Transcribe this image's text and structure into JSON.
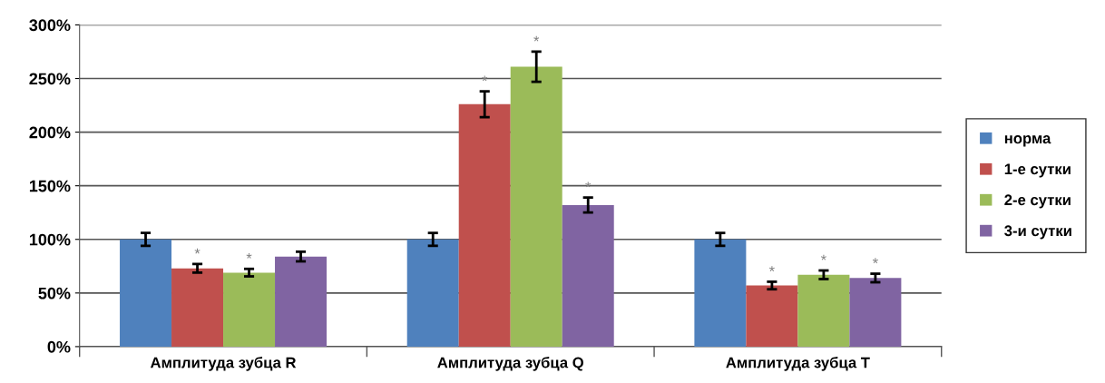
{
  "chart_data": {
    "type": "bar",
    "categories": [
      "Амплитуда зубца R",
      "Амплитуда зубца Q",
      "Амплитуда зубца T"
    ],
    "series": [
      {
        "name": "норма",
        "color": "#4f81bd",
        "values": [
          100,
          100,
          100
        ],
        "errors": [
          6,
          6,
          6
        ],
        "value_labels": [
          null,
          null,
          null
        ]
      },
      {
        "name": "1-е сутки",
        "color": "#c0504d",
        "values": [
          73,
          226,
          57
        ],
        "errors": [
          4,
          12,
          3.5
        ],
        "value_labels": [
          "*",
          "*",
          "*"
        ]
      },
      {
        "name": "2-е сутки",
        "color": "#9bbb59",
        "values": [
          69,
          261,
          67
        ],
        "errors": [
          3.5,
          14,
          4
        ],
        "value_labels": [
          "*",
          "*",
          "*"
        ]
      },
      {
        "name": "3-и сутки",
        "color": "#8064a2",
        "values": [
          84,
          132,
          64
        ],
        "errors": [
          4.5,
          7,
          4
        ],
        "value_labels": [
          null,
          "*",
          "*"
        ]
      }
    ],
    "ylim": [
      0,
      300
    ],
    "yticks": [
      {
        "value": 0,
        "label": "0%"
      },
      {
        "value": 50,
        "label": "50%"
      },
      {
        "value": 100,
        "label": "100%"
      },
      {
        "value": 150,
        "label": "150%"
      },
      {
        "value": 200,
        "label": "200%"
      },
      {
        "value": 250,
        "label": "250%"
      },
      {
        "value": 300,
        "label": "300%"
      }
    ],
    "grid": "y",
    "legend": "right"
  }
}
